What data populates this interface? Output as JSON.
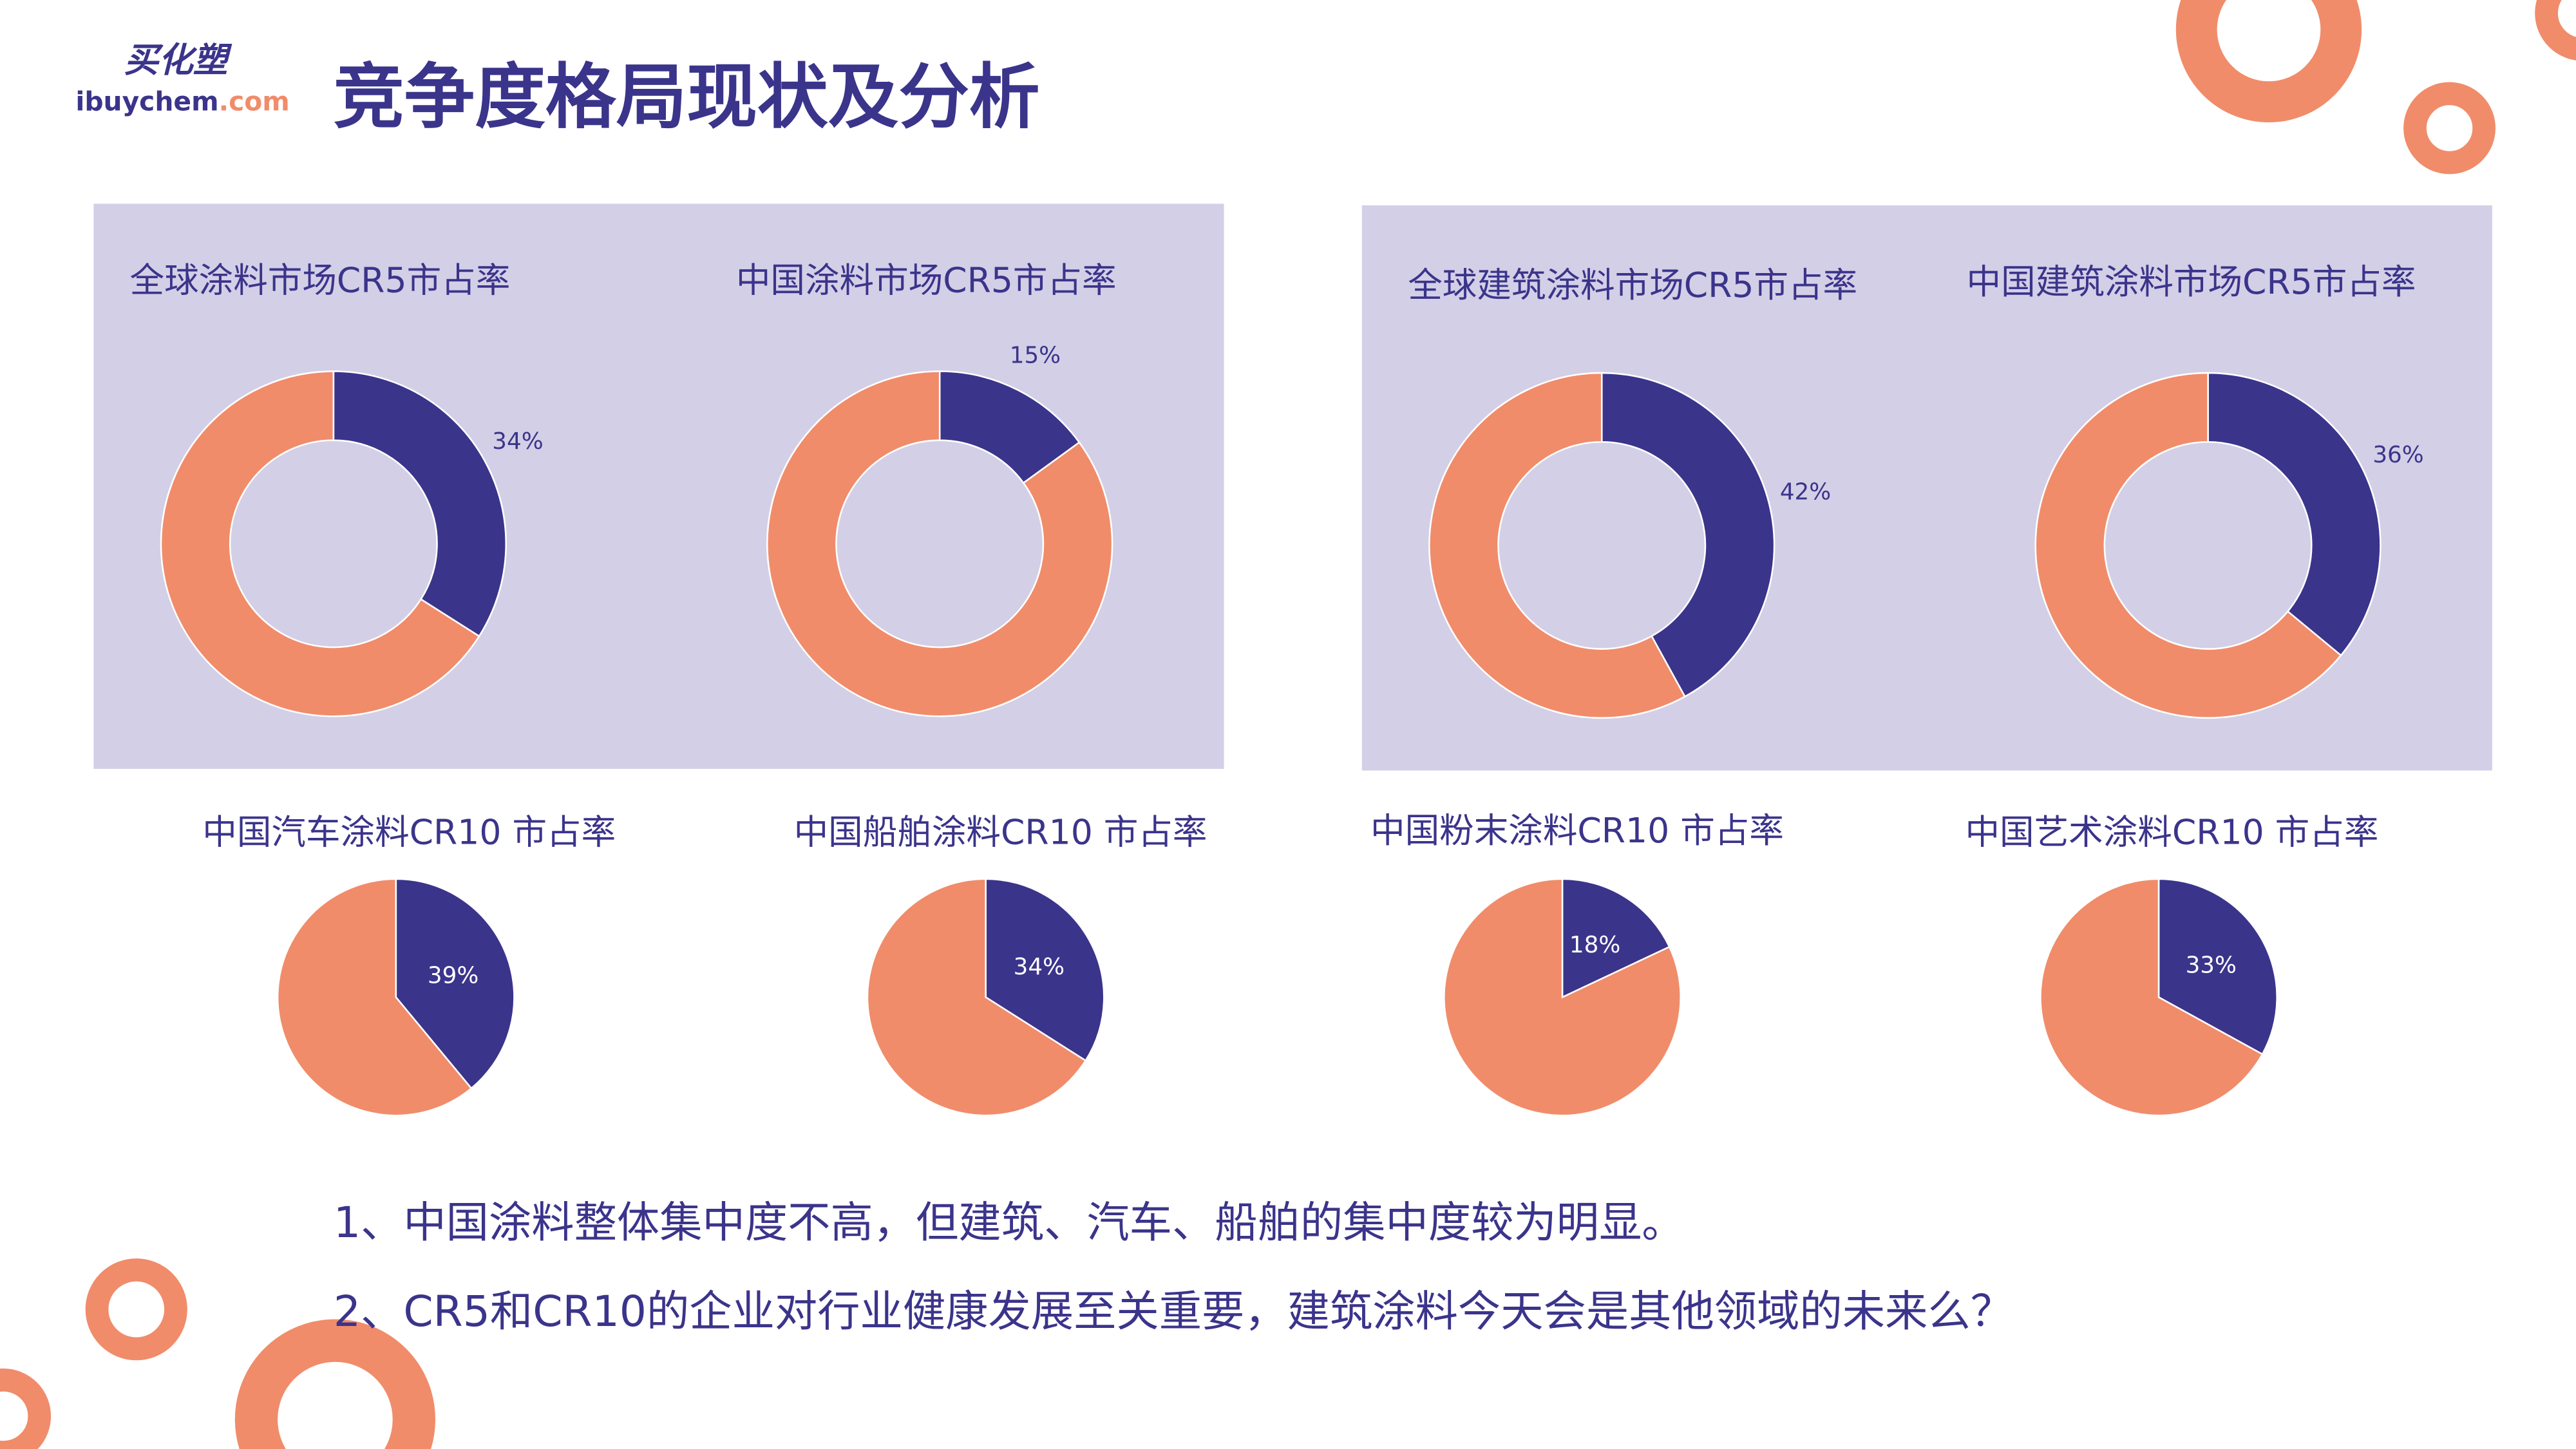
{
  "header": {
    "logo_cn": "买化塑",
    "logo_en": "ibuychem",
    "logo_domain": ".com",
    "title": "竞争度格局现状及分析"
  },
  "chart_data": [
    {
      "type": "donut",
      "title": "全球涂料市场CR5市占率",
      "values": [
        34,
        66
      ],
      "value_labels": [
        "34%",
        null
      ],
      "colors": [
        "#3b348b",
        "#f08c6a"
      ]
    },
    {
      "type": "donut",
      "title": "中国涂料市场CR5市占率",
      "values": [
        15,
        85
      ],
      "value_labels": [
        "15%",
        null
      ],
      "colors": [
        "#3b348b",
        "#f08c6a"
      ]
    },
    {
      "type": "donut",
      "title": "全球建筑涂料市场CR5市占率",
      "values": [
        42,
        58
      ],
      "value_labels": [
        "42%",
        null
      ],
      "colors": [
        "#3b348b",
        "#f08c6a"
      ]
    },
    {
      "type": "donut",
      "title": "中国建筑涂料市场CR5市占率",
      "values": [
        36,
        64
      ],
      "value_labels": [
        "36%",
        null
      ],
      "colors": [
        "#3b348b",
        "#f08c6a"
      ]
    },
    {
      "type": "pie",
      "title": "中国汽车涂料CR10 市占率",
      "values": [
        39,
        61
      ],
      "value_labels": [
        "39%",
        null
      ],
      "colors": [
        "#3b348b",
        "#f08c6a"
      ]
    },
    {
      "type": "pie",
      "title": "中国船舶涂料CR10 市占率",
      "values": [
        34,
        66
      ],
      "value_labels": [
        "34%",
        null
      ],
      "colors": [
        "#3b348b",
        "#f08c6a"
      ]
    },
    {
      "type": "pie",
      "title": "中国粉末涂料CR10 市占率",
      "values": [
        18,
        82
      ],
      "value_labels": [
        "18%",
        null
      ],
      "colors": [
        "#3b348b",
        "#f08c6a"
      ]
    },
    {
      "type": "pie",
      "title": "中国艺术涂料CR10 市占率",
      "values": [
        33,
        67
      ],
      "value_labels": [
        "33%",
        null
      ],
      "colors": [
        "#3b348b",
        "#f08c6a"
      ]
    }
  ],
  "notes": [
    "1、中国涂料整体集中度不高，但建筑、汽车、船舶的集中度较为明显。",
    "2、CR5和CR10的企业对行业健康发展至关重要，建筑涂料今天会是其他领域的未来么？"
  ]
}
